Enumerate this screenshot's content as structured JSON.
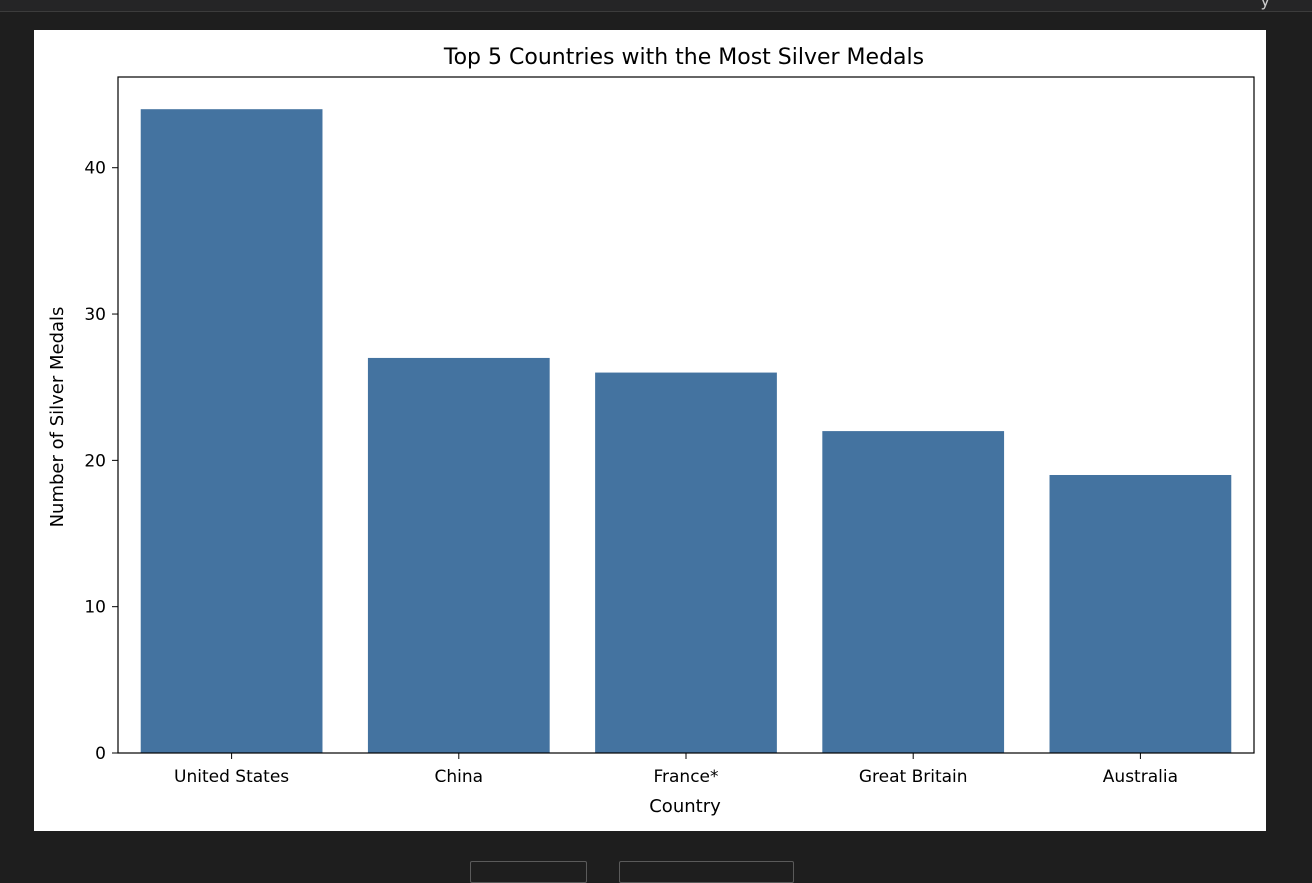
{
  "toolbar": {
    "glyph": "y"
  },
  "chart_data": {
    "type": "bar",
    "title": "Top 5 Countries with the Most Silver Medals",
    "xlabel": "Country",
    "ylabel": "Number of Silver Medals",
    "categories": [
      "United States",
      "China",
      "France*",
      "Great Britain",
      "Australia"
    ],
    "values": [
      44,
      27,
      26,
      22,
      19
    ],
    "yticks": [
      0,
      10,
      20,
      30,
      40
    ],
    "ylim": [
      0,
      46.2
    ],
    "bar_color": "#4473a0",
    "grid": false,
    "legend": "none"
  }
}
